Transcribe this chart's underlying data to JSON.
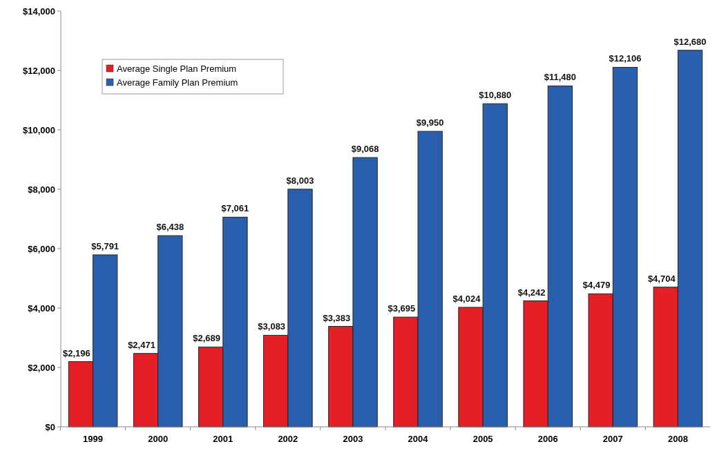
{
  "chart_data": {
    "type": "bar",
    "categories": [
      "1999",
      "2000",
      "2001",
      "2002",
      "2003",
      "2004",
      "2005",
      "2006",
      "2007",
      "2008"
    ],
    "series": [
      {
        "name": "Average Single Plan Premium",
        "color": "#e41f26",
        "values": [
          2196,
          2471,
          2689,
          3083,
          3383,
          3695,
          4024,
          4242,
          4479,
          4704
        ],
        "value_labels": [
          "$2,196",
          "$2,471",
          "$2,689",
          "$3,083",
          "$3,383",
          "$3,695",
          "$4,024",
          "$4,242",
          "$4,479",
          "$4,704"
        ]
      },
      {
        "name": "Average Family Plan Premium",
        "color": "#2a5fae",
        "values": [
          5791,
          6438,
          7061,
          8003,
          9068,
          9950,
          10880,
          11480,
          12106,
          12680
        ],
        "value_labels": [
          "$5,791",
          "$6,438",
          "$7,061",
          "$8,003",
          "$9,068",
          "$9,950",
          "$10,880",
          "$11,480",
          "$12,106",
          "$12,680"
        ]
      }
    ],
    "ylim": [
      0,
      14000
    ],
    "yticks": [
      {
        "value": 0,
        "label": "$0"
      },
      {
        "value": 2000,
        "label": "$2,000"
      },
      {
        "value": 4000,
        "label": "$4,000"
      },
      {
        "value": 6000,
        "label": "$6,000"
      },
      {
        "value": 8000,
        "label": "$8,000"
      },
      {
        "value": 10000,
        "label": "$10,000"
      },
      {
        "value": 12000,
        "label": "$12,000"
      },
      {
        "value": 14000,
        "label": "$14,000"
      }
    ],
    "legend": "top left"
  }
}
